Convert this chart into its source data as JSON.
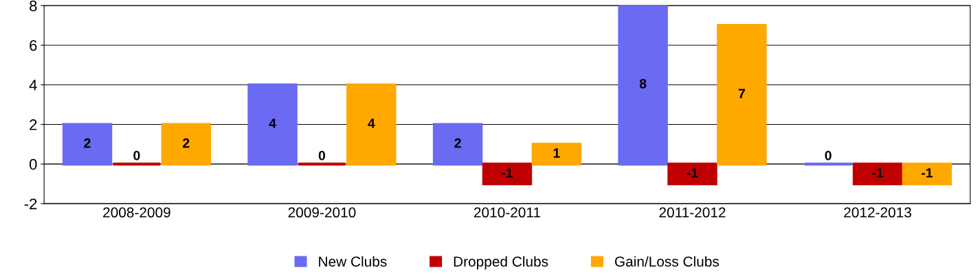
{
  "chart_data": {
    "type": "bar",
    "categories": [
      "2008-2009",
      "2009-2010",
      "2010-2011",
      "2011-2012",
      "2012-2013"
    ],
    "series": [
      {
        "name": "New Clubs",
        "color": "#6a6af2",
        "values": [
          2,
          4,
          2,
          8,
          0
        ]
      },
      {
        "name": "Dropped Clubs",
        "color": "#c00000",
        "values": [
          0,
          0,
          -1,
          -1,
          -1
        ]
      },
      {
        "name": "Gain/Loss Clubs",
        "color": "#ffa800",
        "values": [
          2,
          4,
          1,
          7,
          -1
        ]
      }
    ],
    "ylim": [
      -2,
      8
    ],
    "yticks": [
      -2,
      0,
      2,
      4,
      6,
      8
    ],
    "grid": "y",
    "legend": "bottom",
    "data_labels": true
  }
}
